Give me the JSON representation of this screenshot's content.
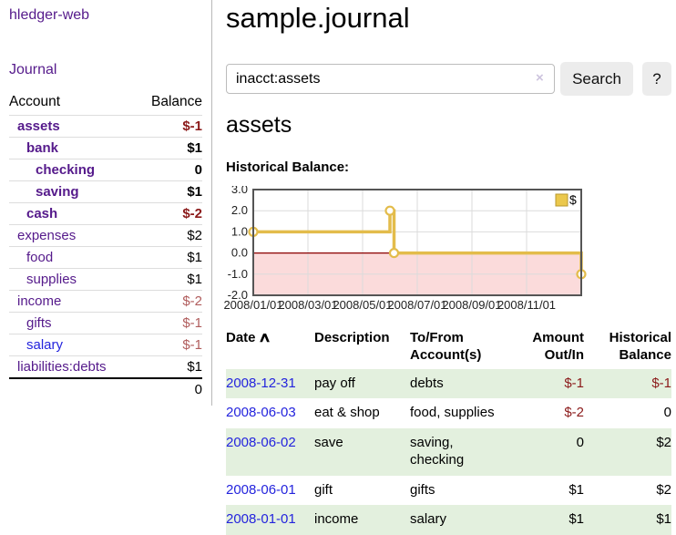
{
  "colors": {
    "link_purple": "#551A8B",
    "link_blue": "#2424DD",
    "negative_strong": "#8B1A1A",
    "negative_soft": "#B05C5C",
    "row_green": "#E3F0DE",
    "button_gray": "#ECECEC"
  },
  "sidebar": {
    "app_title": "hledger-web",
    "journal_label": "Journal",
    "accounts_table": {
      "headers": {
        "account": "Account",
        "balance": "Balance"
      },
      "rows": [
        {
          "name": "assets",
          "depth": 0,
          "bold": true,
          "balance": "$-1",
          "neg": "strong",
          "link": "purple"
        },
        {
          "name": "bank",
          "depth": 1,
          "bold": true,
          "balance": "$1",
          "neg": "",
          "link": "purple"
        },
        {
          "name": "checking",
          "depth": 2,
          "bold": true,
          "balance": "0",
          "neg": "",
          "link": "purple"
        },
        {
          "name": "saving",
          "depth": 2,
          "bold": true,
          "balance": "$1",
          "neg": "",
          "link": "purple"
        },
        {
          "name": "cash",
          "depth": 1,
          "bold": true,
          "balance": "$-2",
          "neg": "strong",
          "link": "purple"
        },
        {
          "name": "expenses",
          "depth": 0,
          "bold": false,
          "balance": "$2",
          "neg": "",
          "link": "purple"
        },
        {
          "name": "food",
          "depth": 1,
          "bold": false,
          "balance": "$1",
          "neg": "",
          "link": "purple"
        },
        {
          "name": "supplies",
          "depth": 1,
          "bold": false,
          "balance": "$1",
          "neg": "",
          "link": "purple"
        },
        {
          "name": "income",
          "depth": 0,
          "bold": false,
          "balance": "$-2",
          "neg": "soft",
          "link": "purple"
        },
        {
          "name": "gifts",
          "depth": 1,
          "bold": false,
          "balance": "$-1",
          "neg": "soft",
          "link": "purple"
        },
        {
          "name": "salary",
          "depth": 1,
          "bold": false,
          "balance": "$-1",
          "neg": "soft",
          "link": "blue"
        },
        {
          "name": "liabilities:debts",
          "depth": 0,
          "bold": false,
          "balance": "$1",
          "neg": "",
          "link": "purple"
        }
      ],
      "total": "0"
    }
  },
  "main": {
    "title": "sample.journal",
    "search": {
      "value": "inacct:assets",
      "clear_icon": "×",
      "button_label": "Search",
      "help_label": "?"
    },
    "account_heading": "assets",
    "chart_heading": "Historical Balance:"
  },
  "chart_data": {
    "type": "line",
    "title": "Historical Balance",
    "x_unit": "months since 2008-01-01",
    "xlim": [
      0,
      12
    ],
    "ylim": [
      -2,
      3
    ],
    "grid": true,
    "legend": {
      "label": "$",
      "position": "top-right"
    },
    "series": [
      {
        "name": "$",
        "step": true,
        "points": [
          {
            "date": "2008-01-01",
            "x": 0,
            "y": 1
          },
          {
            "date": "2008-06-01",
            "x": 5.0,
            "y": 2
          },
          {
            "date": "2008-06-03",
            "x": 5.15,
            "y": 0
          },
          {
            "date": "2008-12-31",
            "x": 12,
            "y": -1
          }
        ]
      }
    ],
    "x_ticks": [
      {
        "x": 0,
        "label": "2008/01/01"
      },
      {
        "x": 2,
        "label": "2008/03/01"
      },
      {
        "x": 4,
        "label": "2008/05/01"
      },
      {
        "x": 6,
        "label": "2008/07/01"
      },
      {
        "x": 8,
        "label": "2008/09/01"
      },
      {
        "x": 10,
        "label": "2008/11/01"
      }
    ],
    "y_ticks": [
      {
        "v": 3,
        "label": "3.0"
      },
      {
        "v": 2,
        "label": "2.0"
      },
      {
        "v": 1,
        "label": "1.0"
      },
      {
        "v": 0,
        "label": "0.0"
      },
      {
        "v": -1,
        "label": "-1.0"
      },
      {
        "v": -2,
        "label": "-2.0"
      }
    ],
    "colors": {
      "line": "#E3BC4B",
      "marker_fill": "#FFFFFF",
      "legend_fill": "#EBC84C",
      "legend_border": "#B8992E",
      "negative_fill": "#FBDBDB",
      "zero_line": "#8B0000",
      "grid": "#DBDBDB",
      "border": "#555555",
      "tick_text": "#222222"
    }
  },
  "register": {
    "headers": {
      "date": "Date",
      "sort_icon": "∧",
      "description": "Description",
      "accounts": "To/From\nAccount(s)",
      "amount": "Amount\nOut/In",
      "balance": "Historical\nBalance"
    },
    "rows": [
      {
        "date": "2008-12-31",
        "description": "pay off",
        "accounts": "debts",
        "amount": "$-1",
        "amount_neg": true,
        "balance": "$-1",
        "balance_neg": true
      },
      {
        "date": "2008-06-03",
        "description": "eat & shop",
        "accounts": "food, supplies",
        "amount": "$-2",
        "amount_neg": true,
        "balance": "0",
        "balance_neg": false
      },
      {
        "date": "2008-06-02",
        "description": "save",
        "accounts": "saving,\nchecking",
        "amount": "0",
        "amount_neg": false,
        "balance": "$2",
        "balance_neg": false
      },
      {
        "date": "2008-06-01",
        "description": "gift",
        "accounts": "gifts",
        "amount": "$1",
        "amount_neg": false,
        "balance": "$2",
        "balance_neg": false
      },
      {
        "date": "2008-01-01",
        "description": "income",
        "accounts": "salary",
        "amount": "$1",
        "amount_neg": false,
        "balance": "$1",
        "balance_neg": false
      }
    ]
  }
}
